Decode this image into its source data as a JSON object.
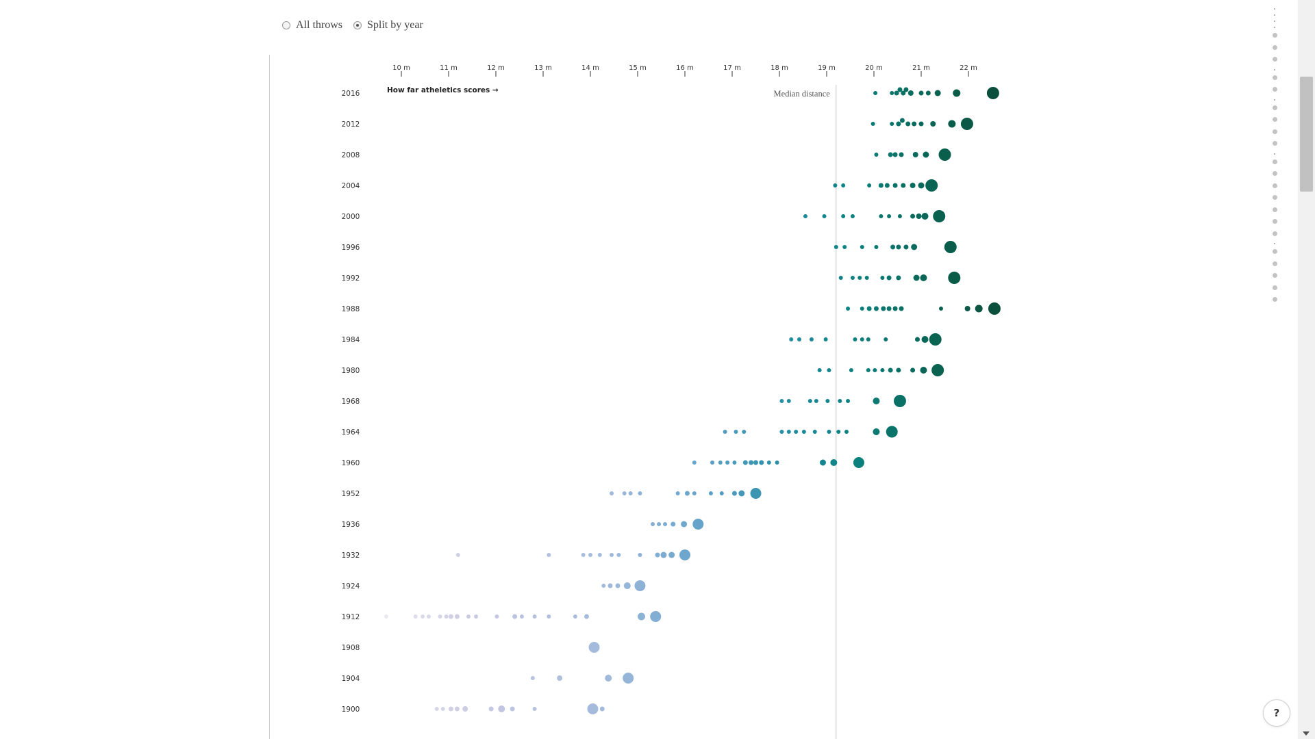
{
  "controls": {
    "option_all": "All throws",
    "option_split": "Split by year",
    "selected": "Split by year"
  },
  "help_button": "?",
  "chart_data": {
    "type": "scatter",
    "subtype": "dot strip plot by year",
    "x_unit": "m",
    "xlim": [
      9.35,
      22.75
    ],
    "x_ticks": [
      {
        "value": 10,
        "label": "10 m"
      },
      {
        "value": 11,
        "label": "11 m"
      },
      {
        "value": 12,
        "label": "12 m"
      },
      {
        "value": 13,
        "label": "13 m"
      },
      {
        "value": 14,
        "label": "14 m"
      },
      {
        "value": 15,
        "label": "15 m"
      },
      {
        "value": 16,
        "label": "16 m"
      },
      {
        "value": 17,
        "label": "17 m"
      },
      {
        "value": 18,
        "label": "18 m"
      },
      {
        "value": 19,
        "label": "19 m"
      },
      {
        "value": 20,
        "label": "20 m"
      },
      {
        "value": 21,
        "label": "21 m"
      },
      {
        "value": 22,
        "label": "22 m"
      }
    ],
    "annotation": "How far atheletics scores →",
    "median": {
      "label": "Median distance",
      "value": 19.2
    },
    "legend": "none",
    "grid": false,
    "colors": {
      "early": "#c9c9e2",
      "mid": "#5ea0c8",
      "late": "#0a7f7a",
      "top": "#0b4f3c"
    },
    "years": [
      {
        "year": "2016",
        "throws": [
          {
            "x": 20.03,
            "r": 3
          },
          {
            "x": 20.38,
            "r": 3
          },
          {
            "x": 20.48,
            "r": 3.5
          },
          {
            "x": 20.55,
            "r": 3.5
          },
          {
            "x": 20.62,
            "r": 3.5
          },
          {
            "x": 20.68,
            "r": 3.5
          },
          {
            "x": 20.78,
            "r": 4
          },
          {
            "x": 21.0,
            "r": 3.5
          },
          {
            "x": 21.15,
            "r": 3.5
          },
          {
            "x": 21.35,
            "r": 4.5
          },
          {
            "x": 21.75,
            "r": 5.5
          },
          {
            "x": 22.52,
            "r": 9
          }
        ]
      },
      {
        "year": "2012",
        "throws": [
          {
            "x": 19.98,
            "r": 3
          },
          {
            "x": 20.38,
            "r": 3
          },
          {
            "x": 20.52,
            "r": 3.5
          },
          {
            "x": 20.6,
            "r": 3.5
          },
          {
            "x": 20.72,
            "r": 3.5
          },
          {
            "x": 20.85,
            "r": 3.5
          },
          {
            "x": 21.0,
            "r": 3.5
          },
          {
            "x": 21.25,
            "r": 4
          },
          {
            "x": 21.65,
            "r": 5.5
          },
          {
            "x": 21.97,
            "r": 9
          }
        ]
      },
      {
        "year": "2008",
        "throws": [
          {
            "x": 20.05,
            "r": 3
          },
          {
            "x": 20.35,
            "r": 3.5
          },
          {
            "x": 20.45,
            "r": 3.5
          },
          {
            "x": 20.58,
            "r": 3.5
          },
          {
            "x": 20.88,
            "r": 4
          },
          {
            "x": 21.1,
            "r": 4.5
          },
          {
            "x": 21.5,
            "r": 9
          }
        ]
      },
      {
        "year": "2004",
        "throws": [
          {
            "x": 19.18,
            "r": 3
          },
          {
            "x": 19.35,
            "r": 3
          },
          {
            "x": 19.9,
            "r": 3
          },
          {
            "x": 20.15,
            "r": 3.5
          },
          {
            "x": 20.28,
            "r": 3.5
          },
          {
            "x": 20.45,
            "r": 3.5
          },
          {
            "x": 20.62,
            "r": 3.5
          },
          {
            "x": 20.82,
            "r": 4
          },
          {
            "x": 21.0,
            "r": 4.5
          },
          {
            "x": 21.22,
            "r": 9
          }
        ]
      },
      {
        "year": "2000",
        "throws": [
          {
            "x": 18.55,
            "r": 3
          },
          {
            "x": 18.95,
            "r": 3
          },
          {
            "x": 19.35,
            "r": 3
          },
          {
            "x": 19.55,
            "r": 3
          },
          {
            "x": 20.15,
            "r": 3
          },
          {
            "x": 20.32,
            "r": 3
          },
          {
            "x": 20.55,
            "r": 3
          },
          {
            "x": 20.82,
            "r": 3.5
          },
          {
            "x": 20.95,
            "r": 4
          },
          {
            "x": 21.08,
            "r": 5
          },
          {
            "x": 21.38,
            "r": 9
          }
        ]
      },
      {
        "year": "1996",
        "throws": [
          {
            "x": 19.2,
            "r": 3
          },
          {
            "x": 19.38,
            "r": 3
          },
          {
            "x": 19.75,
            "r": 3
          },
          {
            "x": 20.05,
            "r": 3
          },
          {
            "x": 20.4,
            "r": 3.5
          },
          {
            "x": 20.52,
            "r": 3.5
          },
          {
            "x": 20.68,
            "r": 3.5
          },
          {
            "x": 20.85,
            "r": 4.5
          },
          {
            "x": 21.62,
            "r": 9
          }
        ]
      },
      {
        "year": "1992",
        "throws": [
          {
            "x": 19.3,
            "r": 3
          },
          {
            "x": 19.55,
            "r": 3
          },
          {
            "x": 19.7,
            "r": 3
          },
          {
            "x": 19.85,
            "r": 3
          },
          {
            "x": 20.18,
            "r": 3
          },
          {
            "x": 20.32,
            "r": 3.5
          },
          {
            "x": 20.52,
            "r": 3.5
          },
          {
            "x": 20.9,
            "r": 4.5
          },
          {
            "x": 21.05,
            "r": 5
          },
          {
            "x": 21.7,
            "r": 9
          }
        ]
      },
      {
        "year": "1988",
        "throws": [
          {
            "x": 19.45,
            "r": 3
          },
          {
            "x": 19.75,
            "r": 3
          },
          {
            "x": 19.9,
            "r": 3.5
          },
          {
            "x": 20.05,
            "r": 3.5
          },
          {
            "x": 20.2,
            "r": 3.5
          },
          {
            "x": 20.32,
            "r": 3.5
          },
          {
            "x": 20.45,
            "r": 3.5
          },
          {
            "x": 20.58,
            "r": 3.5
          },
          {
            "x": 21.42,
            "r": 3
          },
          {
            "x": 21.98,
            "r": 4
          },
          {
            "x": 22.22,
            "r": 5.5
          },
          {
            "x": 22.55,
            "r": 9
          }
        ]
      },
      {
        "year": "1984",
        "throws": [
          {
            "x": 18.25,
            "r": 3
          },
          {
            "x": 18.42,
            "r": 3
          },
          {
            "x": 18.68,
            "r": 3
          },
          {
            "x": 18.98,
            "r": 3
          },
          {
            "x": 19.6,
            "r": 3
          },
          {
            "x": 19.75,
            "r": 3
          },
          {
            "x": 19.88,
            "r": 3
          },
          {
            "x": 20.25,
            "r": 3
          },
          {
            "x": 20.92,
            "r": 3.5
          },
          {
            "x": 21.08,
            "r": 5
          },
          {
            "x": 21.3,
            "r": 9
          }
        ]
      },
      {
        "year": "1980",
        "throws": [
          {
            "x": 18.85,
            "r": 3
          },
          {
            "x": 19.05,
            "r": 3
          },
          {
            "x": 19.52,
            "r": 3
          },
          {
            "x": 19.88,
            "r": 3
          },
          {
            "x": 20.02,
            "r": 3
          },
          {
            "x": 20.18,
            "r": 3
          },
          {
            "x": 20.35,
            "r": 3.5
          },
          {
            "x": 20.52,
            "r": 3.5
          },
          {
            "x": 20.82,
            "r": 3.5
          },
          {
            "x": 21.05,
            "r": 5
          },
          {
            "x": 21.35,
            "r": 9
          }
        ]
      },
      {
        "year": "1968",
        "throws": [
          {
            "x": 18.05,
            "r": 3
          },
          {
            "x": 18.2,
            "r": 3
          },
          {
            "x": 18.65,
            "r": 3
          },
          {
            "x": 18.78,
            "r": 3
          },
          {
            "x": 19.02,
            "r": 3
          },
          {
            "x": 19.28,
            "r": 3
          },
          {
            "x": 19.45,
            "r": 3
          },
          {
            "x": 20.05,
            "r": 5
          },
          {
            "x": 20.55,
            "r": 9
          }
        ]
      },
      {
        "year": "1964",
        "throws": [
          {
            "x": 16.85,
            "r": 3
          },
          {
            "x": 17.08,
            "r": 3
          },
          {
            "x": 17.25,
            "r": 3
          },
          {
            "x": 18.05,
            "r": 3
          },
          {
            "x": 18.2,
            "r": 3
          },
          {
            "x": 18.35,
            "r": 3
          },
          {
            "x": 18.52,
            "r": 3
          },
          {
            "x": 18.75,
            "r": 3
          },
          {
            "x": 19.05,
            "r": 3
          },
          {
            "x": 19.25,
            "r": 3
          },
          {
            "x": 19.42,
            "r": 3
          },
          {
            "x": 20.05,
            "r": 5
          },
          {
            "x": 20.38,
            "r": 8.5
          }
        ]
      },
      {
        "year": "1960",
        "throws": [
          {
            "x": 16.2,
            "r": 3
          },
          {
            "x": 16.58,
            "r": 3
          },
          {
            "x": 16.75,
            "r": 3
          },
          {
            "x": 16.9,
            "r": 3
          },
          {
            "x": 17.05,
            "r": 3
          },
          {
            "x": 17.28,
            "r": 3.5
          },
          {
            "x": 17.4,
            "r": 3.5
          },
          {
            "x": 17.5,
            "r": 3.5
          },
          {
            "x": 17.62,
            "r": 3.5
          },
          {
            "x": 17.78,
            "r": 3
          },
          {
            "x": 17.95,
            "r": 3
          },
          {
            "x": 18.92,
            "r": 4.5
          },
          {
            "x": 19.15,
            "r": 5
          },
          {
            "x": 19.68,
            "r": 8
          }
        ]
      },
      {
        "year": "1952",
        "throws": [
          {
            "x": 14.45,
            "r": 3
          },
          {
            "x": 14.72,
            "r": 3
          },
          {
            "x": 14.85,
            "r": 3
          },
          {
            "x": 15.05,
            "r": 3
          },
          {
            "x": 15.85,
            "r": 3
          },
          {
            "x": 16.05,
            "r": 3.5
          },
          {
            "x": 16.2,
            "r": 3
          },
          {
            "x": 16.55,
            "r": 3
          },
          {
            "x": 16.78,
            "r": 3
          },
          {
            "x": 17.05,
            "r": 3.5
          },
          {
            "x": 17.2,
            "r": 4.5
          },
          {
            "x": 17.5,
            "r": 8
          }
        ]
      },
      {
        "year": "1936",
        "throws": [
          {
            "x": 15.32,
            "r": 3
          },
          {
            "x": 15.45,
            "r": 3
          },
          {
            "x": 15.58,
            "r": 3
          },
          {
            "x": 15.75,
            "r": 3.5
          },
          {
            "x": 15.98,
            "r": 4.5
          },
          {
            "x": 16.28,
            "r": 8
          }
        ]
      },
      {
        "year": "1932",
        "throws": [
          {
            "x": 11.2,
            "r": 3
          },
          {
            "x": 13.12,
            "r": 3
          },
          {
            "x": 13.85,
            "r": 3
          },
          {
            "x": 14.0,
            "r": 3
          },
          {
            "x": 14.2,
            "r": 3
          },
          {
            "x": 14.45,
            "r": 3
          },
          {
            "x": 14.6,
            "r": 3
          },
          {
            "x": 15.05,
            "r": 3
          },
          {
            "x": 15.42,
            "r": 3.5
          },
          {
            "x": 15.55,
            "r": 4.5
          },
          {
            "x": 15.72,
            "r": 4.5
          },
          {
            "x": 16.0,
            "r": 8
          }
        ]
      },
      {
        "year": "1924",
        "throws": [
          {
            "x": 14.28,
            "r": 3
          },
          {
            "x": 14.42,
            "r": 3.5
          },
          {
            "x": 14.58,
            "r": 3.5
          },
          {
            "x": 14.78,
            "r": 5
          },
          {
            "x": 15.05,
            "r": 8
          }
        ]
      },
      {
        "year": "1912",
        "throws": [
          {
            "x": 9.68,
            "r": 3
          },
          {
            "x": 10.3,
            "r": 3
          },
          {
            "x": 10.45,
            "r": 3
          },
          {
            "x": 10.58,
            "r": 3
          },
          {
            "x": 10.82,
            "r": 3
          },
          {
            "x": 10.95,
            "r": 3
          },
          {
            "x": 11.05,
            "r": 3.5
          },
          {
            "x": 11.18,
            "r": 3.5
          },
          {
            "x": 11.42,
            "r": 3
          },
          {
            "x": 11.58,
            "r": 3
          },
          {
            "x": 12.02,
            "r": 3
          },
          {
            "x": 12.4,
            "r": 3.5
          },
          {
            "x": 12.55,
            "r": 3
          },
          {
            "x": 12.82,
            "r": 3
          },
          {
            "x": 13.12,
            "r": 3
          },
          {
            "x": 13.68,
            "r": 3
          },
          {
            "x": 13.92,
            "r": 3.5
          },
          {
            "x": 15.08,
            "r": 5.5
          },
          {
            "x": 15.38,
            "r": 8
          }
        ]
      },
      {
        "year": "1908",
        "throws": [
          {
            "x": 14.08,
            "r": 8
          }
        ]
      },
      {
        "year": "1904",
        "throws": [
          {
            "x": 12.78,
            "r": 3
          },
          {
            "x": 13.35,
            "r": 4
          },
          {
            "x": 14.38,
            "r": 5
          },
          {
            "x": 14.8,
            "r": 8
          }
        ]
      },
      {
        "year": "1900",
        "throws": [
          {
            "x": 10.75,
            "r": 3
          },
          {
            "x": 10.88,
            "r": 3
          },
          {
            "x": 11.05,
            "r": 3.5
          },
          {
            "x": 11.18,
            "r": 3.5
          },
          {
            "x": 11.35,
            "r": 4
          },
          {
            "x": 11.9,
            "r": 3.5
          },
          {
            "x": 12.12,
            "r": 5
          },
          {
            "x": 12.35,
            "r": 3.5
          },
          {
            "x": 12.82,
            "r": 3
          },
          {
            "x": 14.05,
            "r": 8
          },
          {
            "x": 14.25,
            "r": 3.5
          }
        ]
      }
    ]
  }
}
